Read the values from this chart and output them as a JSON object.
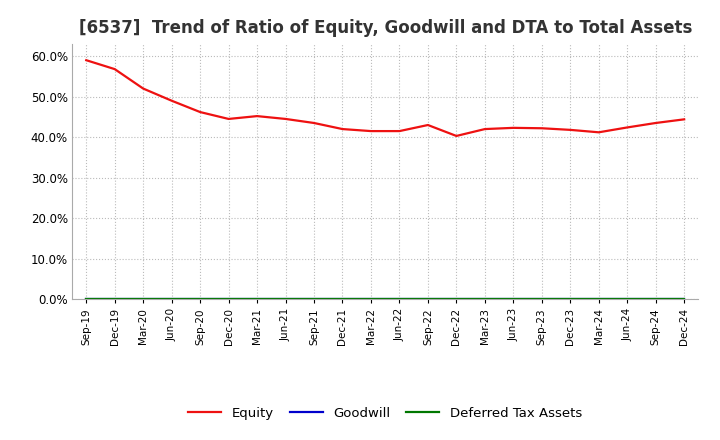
{
  "title": "[6537]  Trend of Ratio of Equity, Goodwill and DTA to Total Assets",
  "title_fontsize": 12,
  "background_color": "#ffffff",
  "grid_color": "#bbbbbb",
  "ylim": [
    0.0,
    0.63
  ],
  "yticks": [
    0.0,
    0.1,
    0.2,
    0.3,
    0.4,
    0.5,
    0.6
  ],
  "ytick_labels": [
    "0.0%",
    "10.0%",
    "20.0%",
    "30.0%",
    "40.0%",
    "50.0%",
    "60.0%"
  ],
  "x_labels": [
    "Sep-19",
    "Dec-19",
    "Mar-20",
    "Jun-20",
    "Sep-20",
    "Dec-20",
    "Mar-21",
    "Jun-21",
    "Sep-21",
    "Dec-21",
    "Mar-22",
    "Jun-22",
    "Sep-22",
    "Dec-22",
    "Mar-23",
    "Jun-23",
    "Sep-23",
    "Dec-23",
    "Mar-24",
    "Jun-24",
    "Sep-24",
    "Dec-24"
  ],
  "equity": [
    0.59,
    0.568,
    0.52,
    0.49,
    0.462,
    0.445,
    0.452,
    0.445,
    0.435,
    0.42,
    0.415,
    0.415,
    0.43,
    0.403,
    0.42,
    0.423,
    0.422,
    0.418,
    0.412,
    0.424,
    0.435,
    0.444
  ],
  "goodwill": [
    0.0,
    0.0,
    0.0,
    0.0,
    0.0,
    0.0,
    0.0,
    0.0,
    0.0,
    0.0,
    0.0,
    0.0,
    0.0,
    0.0,
    0.0,
    0.0,
    0.0,
    0.0,
    0.0,
    0.0,
    0.0,
    0.0
  ],
  "dta": [
    0.0,
    0.0,
    0.0,
    0.0,
    0.0,
    0.0,
    0.0,
    0.0,
    0.0,
    0.0,
    0.0,
    0.0,
    0.0,
    0.0,
    0.0,
    0.0,
    0.0,
    0.0,
    0.0,
    0.0,
    0.0,
    0.0
  ],
  "equity_color": "#ee1111",
  "goodwill_color": "#0000cc",
  "dta_color": "#007700",
  "line_width": 1.6,
  "legend_labels": [
    "Equity",
    "Goodwill",
    "Deferred Tax Assets"
  ],
  "spine_color": "#aaaaaa"
}
